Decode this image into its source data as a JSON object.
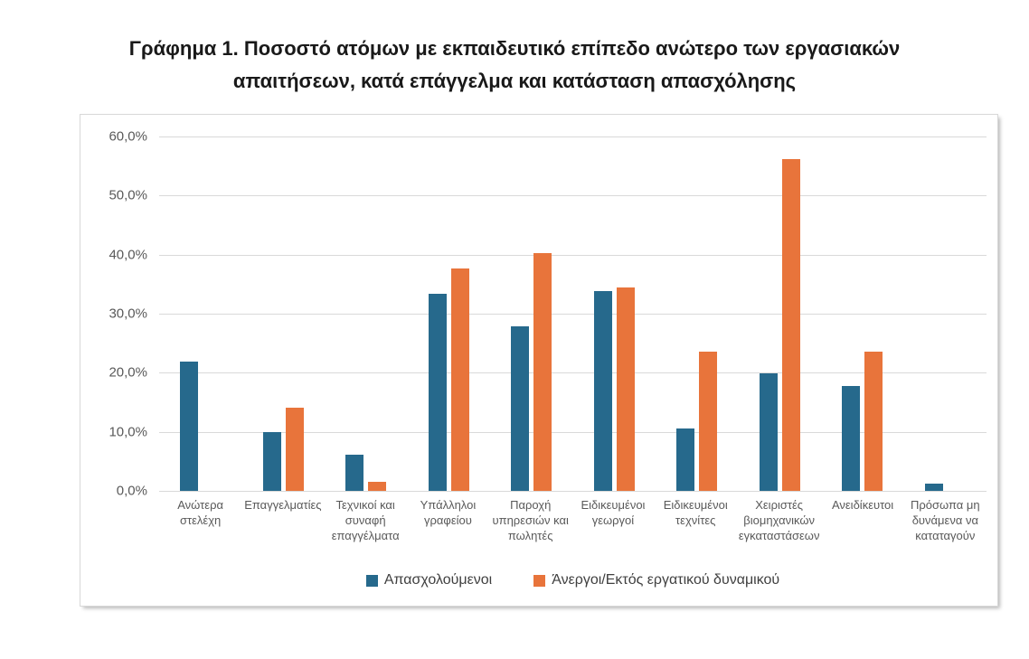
{
  "title": "Γράφημα 1. Ποσοστό ατόμων με εκπαιδευτικό επίπεδο ανώτερο των εργασιακών απαιτήσεων, κατά επάγγελμα και κατάσταση απασχόλησης",
  "colors": {
    "employed_blue": "#26698C",
    "unemployed_orange": "#E8743B",
    "gridline": "#d9d9d9",
    "axis_text": "#595959",
    "title_text": "#191919"
  },
  "chart_data": {
    "type": "bar",
    "title": "Γράφημα 1. Ποσοστό ατόμων με εκπαιδευτικό επίπεδο ανώτερο των εργασιακών απαιτήσεων, κατά επάγγελμα και κατάσταση απασχόλησης",
    "categories": [
      "Ανώτερα στελέχη",
      "Επαγγελματίες",
      "Τεχνικοί και συναφή επαγγέλματα",
      "Υπάλληλοι γραφείου",
      "Παροχή υπηρεσιών και πωλητές",
      "Ειδικευμένοι γεωργοί",
      "Ειδικευμένοι τεχνίτες",
      "Χειριστές βιομηχανικών εγκαταστάσεων",
      "Ανειδίκευτοι",
      "Πρόσωπα μη δυνάμενα να καταταγούν"
    ],
    "series": [
      {
        "name": "Απασχολούμενοι",
        "color": "#26698C",
        "values": [
          21.9,
          10.0,
          6.1,
          33.4,
          27.9,
          33.9,
          10.5,
          19.9,
          17.8,
          1.2
        ]
      },
      {
        "name": "Άνεργοι/Εκτός εργατικού δυναμικού",
        "color": "#E8743B",
        "values": [
          0,
          14.1,
          1.5,
          37.7,
          40.2,
          34.5,
          23.5,
          56.1,
          23.6,
          0
        ]
      }
    ],
    "xlabel": "",
    "ylabel": "",
    "ylim": [
      0,
      60
    ],
    "y_tick_step": 10,
    "y_tick_labels": [
      "0,0%",
      "10,0%",
      "20,0%",
      "30,0%",
      "40,0%",
      "50,0%",
      "60,0%"
    ],
    "grid": true,
    "legend_position": "bottom"
  }
}
